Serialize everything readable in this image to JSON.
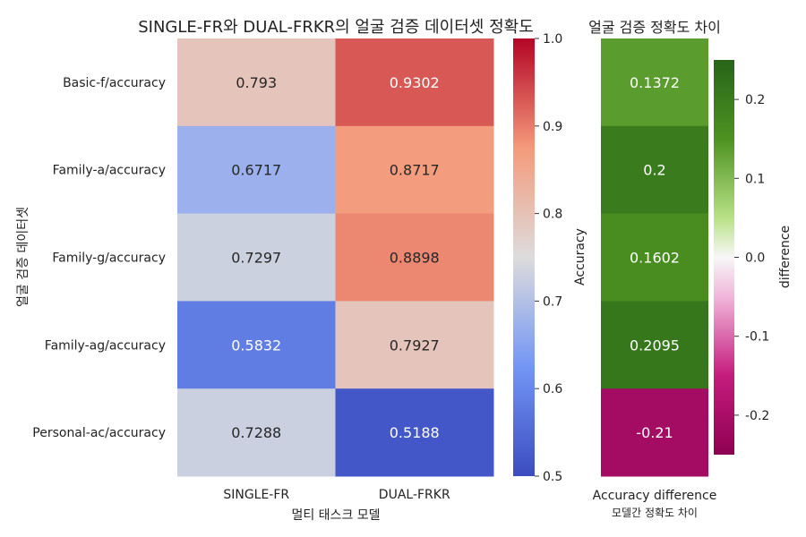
{
  "chart_data": [
    {
      "type": "heatmap",
      "title": "SINGLE-FR와 DUAL-FRKR의 얼굴 검증 데이터셋 정확도",
      "xlabel": "멀티 태스크 모델",
      "ylabel": "얼굴 검증 데이터셋",
      "columns": [
        "SINGLE-FR",
        "DUAL-FRKR"
      ],
      "rows": [
        "Basic-f/accuracy",
        "Family-a/accuracy",
        "Family-g/accuracy",
        "Family-ag/accuracy",
        "Personal-ac/accuracy"
      ],
      "values": [
        [
          "0.793",
          "0.9302"
        ],
        [
          "0.6717",
          "0.8717"
        ],
        [
          "0.7297",
          "0.8898"
        ],
        [
          "0.5832",
          "0.7927"
        ],
        [
          "0.7288",
          "0.5188"
        ]
      ],
      "colormap": "coolwarm",
      "colorbar": {
        "label": "Accuracy",
        "range": [
          0.5,
          1.0
        ],
        "ticks": [
          "0.5",
          "0.6",
          "0.7",
          "0.8",
          "0.9",
          "1.0"
        ]
      }
    },
    {
      "type": "heatmap",
      "title": "얼굴 검증 정확도 차이",
      "xlabel": "Accuracy difference",
      "xsublabel": "모델간 정확도 차이",
      "rows": [
        "Basic-f/accuracy",
        "Family-a/accuracy",
        "Family-g/accuracy",
        "Family-ag/accuracy",
        "Personal-ac/accuracy"
      ],
      "values": [
        "0.1372",
        "0.2",
        "0.1602",
        "0.2095",
        "-0.21"
      ],
      "colormap": "PiYG",
      "colorbar": {
        "label": "difference",
        "range": [
          -0.25,
          0.25
        ],
        "ticks": [
          "0.2",
          "0.1",
          "0.0",
          "-0.1",
          "-0.2"
        ]
      }
    }
  ]
}
